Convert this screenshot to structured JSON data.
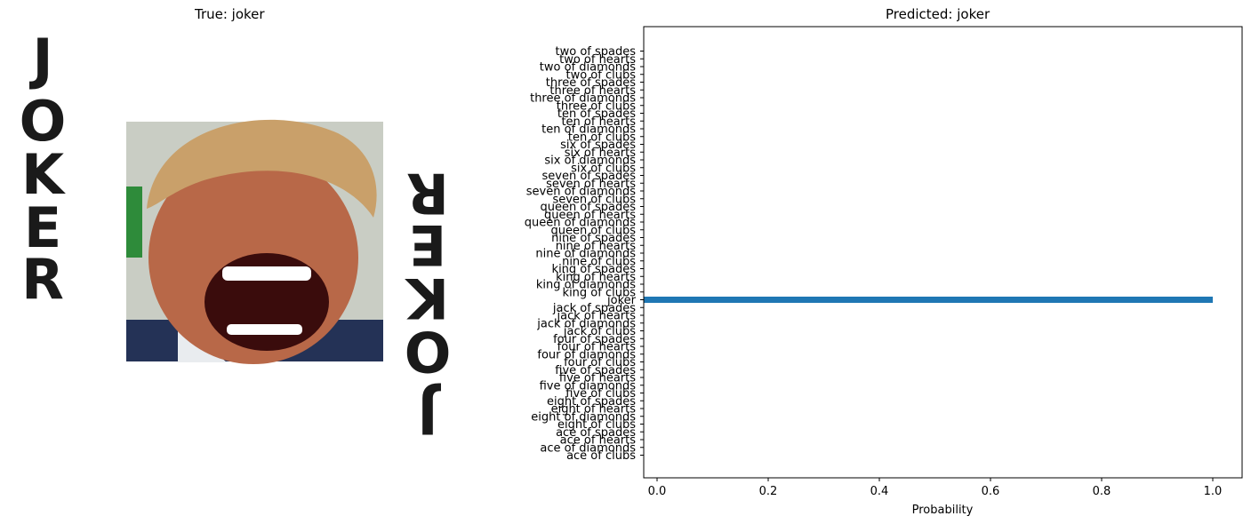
{
  "left_panel": {
    "title": "True: joker",
    "card_text_top": "JOKER",
    "card_text_bottom": "JOKER",
    "palette": {
      "card_letters": "#1a1a1a",
      "photo_bg": "#c9cdc4",
      "hair": "#c9a06a",
      "skin": "#b86848",
      "mouth": "#3a0c0c",
      "teeth": "#ffffff",
      "suit": "#243256",
      "flag": "#2e8b3a"
    }
  },
  "chart_data": {
    "type": "bar",
    "orientation": "horizontal",
    "title": "Predicted: joker",
    "xlabel": "Probability",
    "ylabel": "",
    "xlim": [
      0,
      1.05
    ],
    "xticks": [
      "0.0",
      "0.2",
      "0.4",
      "0.6",
      "0.8",
      "1.0"
    ],
    "xtick_values": [
      0,
      0.2,
      0.4,
      0.6,
      0.8,
      1.0
    ],
    "bar_color": "#1f77b4",
    "grid": false,
    "categories": [
      "two of spades",
      "two of hearts",
      "two of diamonds",
      "two of clubs",
      "three of spades",
      "three of hearts",
      "three of diamonds",
      "three of clubs",
      "ten of spades",
      "ten of hearts",
      "ten of diamonds",
      "ten of clubs",
      "six of spades",
      "six of hearts",
      "six of diamonds",
      "six of clubs",
      "seven of spades",
      "seven of hearts",
      "seven of diamonds",
      "seven of clubs",
      "queen of spades",
      "queen of hearts",
      "queen of diamonds",
      "queen of clubs",
      "nine of spades",
      "nine of hearts",
      "nine of diamonds",
      "nine of clubs",
      "king of spades",
      "king of hearts",
      "king of diamonds",
      "king of clubs",
      "joker",
      "jack of spades",
      "jack of hearts",
      "jack of diamonds",
      "jack of clubs",
      "four of spades",
      "four of hearts",
      "four of diamonds",
      "four of clubs",
      "five of spades",
      "five of hearts",
      "five of diamonds",
      "five of clubs",
      "eight of spades",
      "eight of hearts",
      "eight of diamonds",
      "eight of clubs",
      "ace of spades",
      "ace of hearts",
      "ace of diamonds",
      "ace of clubs"
    ],
    "values": [
      0,
      0,
      0,
      0,
      0,
      0,
      0,
      0,
      0,
      0,
      0,
      0,
      0,
      0,
      0,
      0,
      0,
      0,
      0,
      0,
      0,
      0,
      0,
      0,
      0,
      0,
      0,
      0,
      0,
      0,
      0,
      0,
      1.0,
      0,
      0,
      0,
      0,
      0,
      0,
      0,
      0,
      0,
      0,
      0,
      0,
      0,
      0,
      0,
      0,
      0,
      0,
      0,
      0
    ]
  }
}
